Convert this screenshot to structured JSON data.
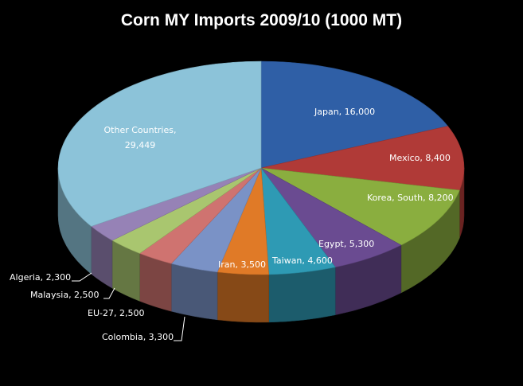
{
  "chart_data": {
    "type": "pie",
    "style": "3d",
    "title": "Corn MY Imports 2009/10 (1000 MT)",
    "categories": [
      "Japan",
      "Mexico",
      "Korea, South",
      "Egypt",
      "Taiwan",
      "Iran",
      "Colombia",
      "EU-27",
      "Malaysia",
      "Algeria",
      "Other Countries"
    ],
    "values": [
      16000,
      8400,
      8200,
      5300,
      4600,
      3500,
      3300,
      2500,
      2500,
      2300,
      29449
    ],
    "data_labels": [
      "Japan, 16,000",
      "Mexico, 8,400",
      "Korea, South, 8,200",
      "Egypt, 5,300",
      "Taiwan, 4,600",
      "Iran, 3,500",
      "Colombia, 3,300",
      "EU-27, 2,500",
      "Malaysia, 2,500",
      "Algeria, 2,300",
      "Other Countries, 29,449"
    ],
    "colors": [
      "#2f5fa6",
      "#b03a37",
      "#8aae3f",
      "#6a4b91",
      "#2e9ab4",
      "#e07a27",
      "#7a92c6",
      "#cf7370",
      "#a9c66f",
      "#9682b6",
      "#8cc3d9"
    ],
    "legend": "none",
    "background": "#000000"
  }
}
